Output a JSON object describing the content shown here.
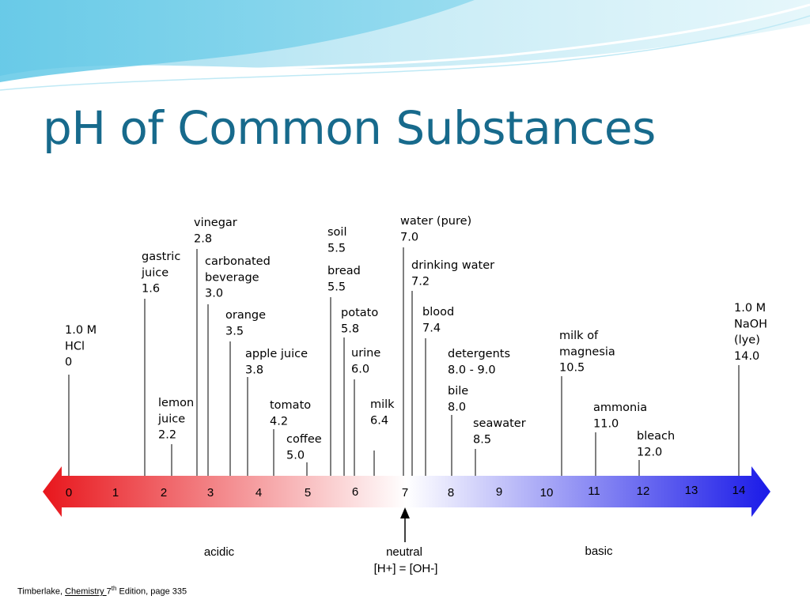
{
  "title": "pH of Common Substances",
  "colors": {
    "title": "#176a8c",
    "acid": "#e8161c",
    "neutral": "#ffffff",
    "base": "#1a1ae8"
  },
  "scale": {
    "min": 0,
    "max": 14,
    "ticks": [
      "0",
      "1",
      "2",
      "3",
      "4",
      "5",
      "6",
      "7",
      "8",
      "9",
      "10",
      "11",
      "12",
      "13",
      "14"
    ],
    "labels": {
      "acidic": "acidic",
      "basic": "basic",
      "neutral": "neutral",
      "neutral_eq": "[H+] = [OH-]"
    }
  },
  "substances": [
    {
      "lines": [
        "1.0 M",
        "HCl",
        "0"
      ],
      "ph": 0
    },
    {
      "lines": [
        "gastric",
        "juice",
        "1.6"
      ],
      "ph": 1.6
    },
    {
      "lines": [
        "lemon",
        "juice",
        "2.2"
      ],
      "ph": 2.2
    },
    {
      "lines": [
        "vinegar",
        "2.8"
      ],
      "ph": 2.8
    },
    {
      "lines": [
        "carbonated",
        "beverage",
        "3.0"
      ],
      "ph": 3.0
    },
    {
      "lines": [
        "orange",
        "3.5"
      ],
      "ph": 3.5
    },
    {
      "lines": [
        "apple juice",
        "3.8"
      ],
      "ph": 3.8
    },
    {
      "lines": [
        "tomato",
        "4.2"
      ],
      "ph": 4.2
    },
    {
      "lines": [
        "coffee",
        "5.0"
      ],
      "ph": 5.0
    },
    {
      "lines": [
        "soil",
        "5.5"
      ],
      "ph": 5.5
    },
    {
      "lines": [
        "bread",
        "5.5"
      ],
      "ph": 5.5
    },
    {
      "lines": [
        "potato",
        "5.8"
      ],
      "ph": 5.8
    },
    {
      "lines": [
        "urine",
        "6.0"
      ],
      "ph": 6.0
    },
    {
      "lines": [
        "milk",
        "6.4"
      ],
      "ph": 6.4
    },
    {
      "lines": [
        "water (pure)",
        "7.0"
      ],
      "ph": 7.0
    },
    {
      "lines": [
        "drinking water",
        "7.2"
      ],
      "ph": 7.2
    },
    {
      "lines": [
        "blood",
        "7.4"
      ],
      "ph": 7.4
    },
    {
      "lines": [
        "detergents",
        "8.0 - 9.0"
      ],
      "ph": 8.5
    },
    {
      "lines": [
        "bile",
        "8.0"
      ],
      "ph": 8.0
    },
    {
      "lines": [
        "seawater",
        "8.5"
      ],
      "ph": 8.5
    },
    {
      "lines": [
        "milk of",
        "magnesia",
        "10.5"
      ],
      "ph": 10.5
    },
    {
      "lines": [
        "ammonia",
        "11.0"
      ],
      "ph": 11.0
    },
    {
      "lines": [
        "bleach",
        "12.0"
      ],
      "ph": 12.0
    },
    {
      "lines": [
        "1.0 M",
        "NaOH",
        "(lye)",
        "14.0"
      ],
      "ph": 14.0
    }
  ],
  "citation": {
    "author": "Timberlake, ",
    "book": "Chemistry ",
    "edition_num": "7",
    "edition_sup": "th",
    "rest": " Edition, page 335"
  }
}
